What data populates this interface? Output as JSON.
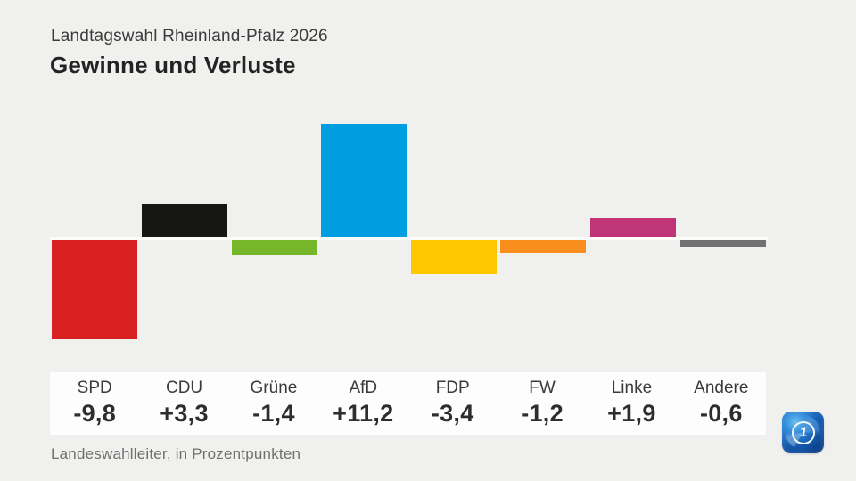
{
  "header": {
    "subtitle": "Landtagswahl Rheinland-Pfalz 2026",
    "title": "Gewinne und Verluste"
  },
  "footer": {
    "source": "Landeswahlleiter, in Prozentpunkten"
  },
  "logo": {
    "name": "ard-das-erste-logo",
    "digit": "1"
  },
  "colors": {
    "background": "#f0f0ee",
    "label_band": "#fdfdfd",
    "zero_line": "#fcfcfb",
    "text_dark": "#2d2d2d",
    "text_gray": "#6f6f6f"
  },
  "chart_data": {
    "type": "bar",
    "title": "Gewinne und Verluste",
    "subtitle": "Landtagswahl Rheinland-Pfalz 2026",
    "unit": "Prozentpunkte",
    "source": "Landeswahlleiter",
    "baseline": 0,
    "ylim": [
      -10.5,
      12
    ],
    "grid": false,
    "legend": false,
    "categories": [
      "SPD",
      "CDU",
      "Grüne",
      "AfD",
      "FDP",
      "FW",
      "Linke",
      "Andere"
    ],
    "values": [
      -9.8,
      3.3,
      -1.4,
      11.2,
      -3.4,
      -1.2,
      1.9,
      -0.6
    ],
    "value_labels": [
      "-9,8",
      "+3,3",
      "-1,4",
      "+11,2",
      "-3,4",
      "-1,2",
      "+1,9",
      "-0,6"
    ],
    "colors": [
      "#d7201f",
      "#161615",
      "#76b72a",
      "#009de0",
      "#ffc800",
      "#f98d1e",
      "#c03578",
      "#717171"
    ]
  }
}
